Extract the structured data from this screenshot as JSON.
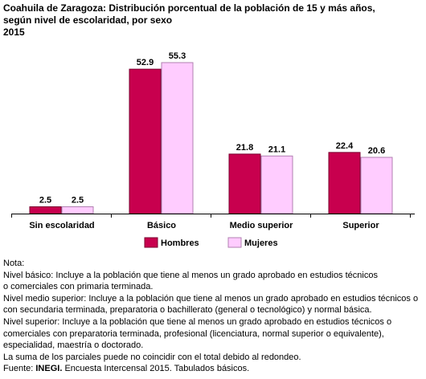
{
  "title": {
    "line1": "Coahuila de Zaragoza: Distribución porcentual de la población de 15 y más años,",
    "line2": "según nivel de escolaridad, por sexo",
    "year": "2015"
  },
  "chart_data": {
    "type": "bar",
    "categories": [
      "Sin escolaridad",
      "Básico",
      "Medio superior",
      "Superior"
    ],
    "series": [
      {
        "name": "Hombres",
        "values": [
          2.5,
          52.9,
          21.8,
          22.4
        ],
        "value_labels": [
          "2.5",
          "52.9",
          "21.8",
          "22.4"
        ],
        "color": "#c8004e",
        "border": "#7a0030"
      },
      {
        "name": "Mujeres",
        "values": [
          2.5,
          55.3,
          21.1,
          20.6
        ],
        "value_labels": [
          "2.5",
          "55.3",
          "21.1",
          "20.6"
        ],
        "color": "#ffccff",
        "border": "#b080b0"
      }
    ],
    "ylim": [
      0,
      60
    ],
    "grid": false,
    "legend_position": "bottom"
  },
  "notes": {
    "header": "Nota:",
    "lines": [
      "Nivel básico: Incluye a la población que tiene al menos un grado aprobado en estudios técnicos",
      "o comerciales con primaria terminada.",
      "Nivel medio superior: Incluye a la población que tiene al menos un grado aprobado en estudios técnicos o",
      "con secundaria terminada, preparatoria o bachillerato (general o tecnológico) y normal básica.",
      "Nivel superior: Incluye a la población que tiene al menos un grado aprobado en estudios técnicos o",
      "comerciales con preparatoria terminada, profesional (licenciatura, normal superior o equivalente),",
      "especialidad, maestría o doctorado.",
      "La suma de los parciales puede no coincidir con el total debido al redondeo."
    ],
    "source_label": "Fuente:",
    "source_org": "INEGI.",
    "source_text": " Encuesta Intercensal 2015. Tabulados básicos."
  }
}
